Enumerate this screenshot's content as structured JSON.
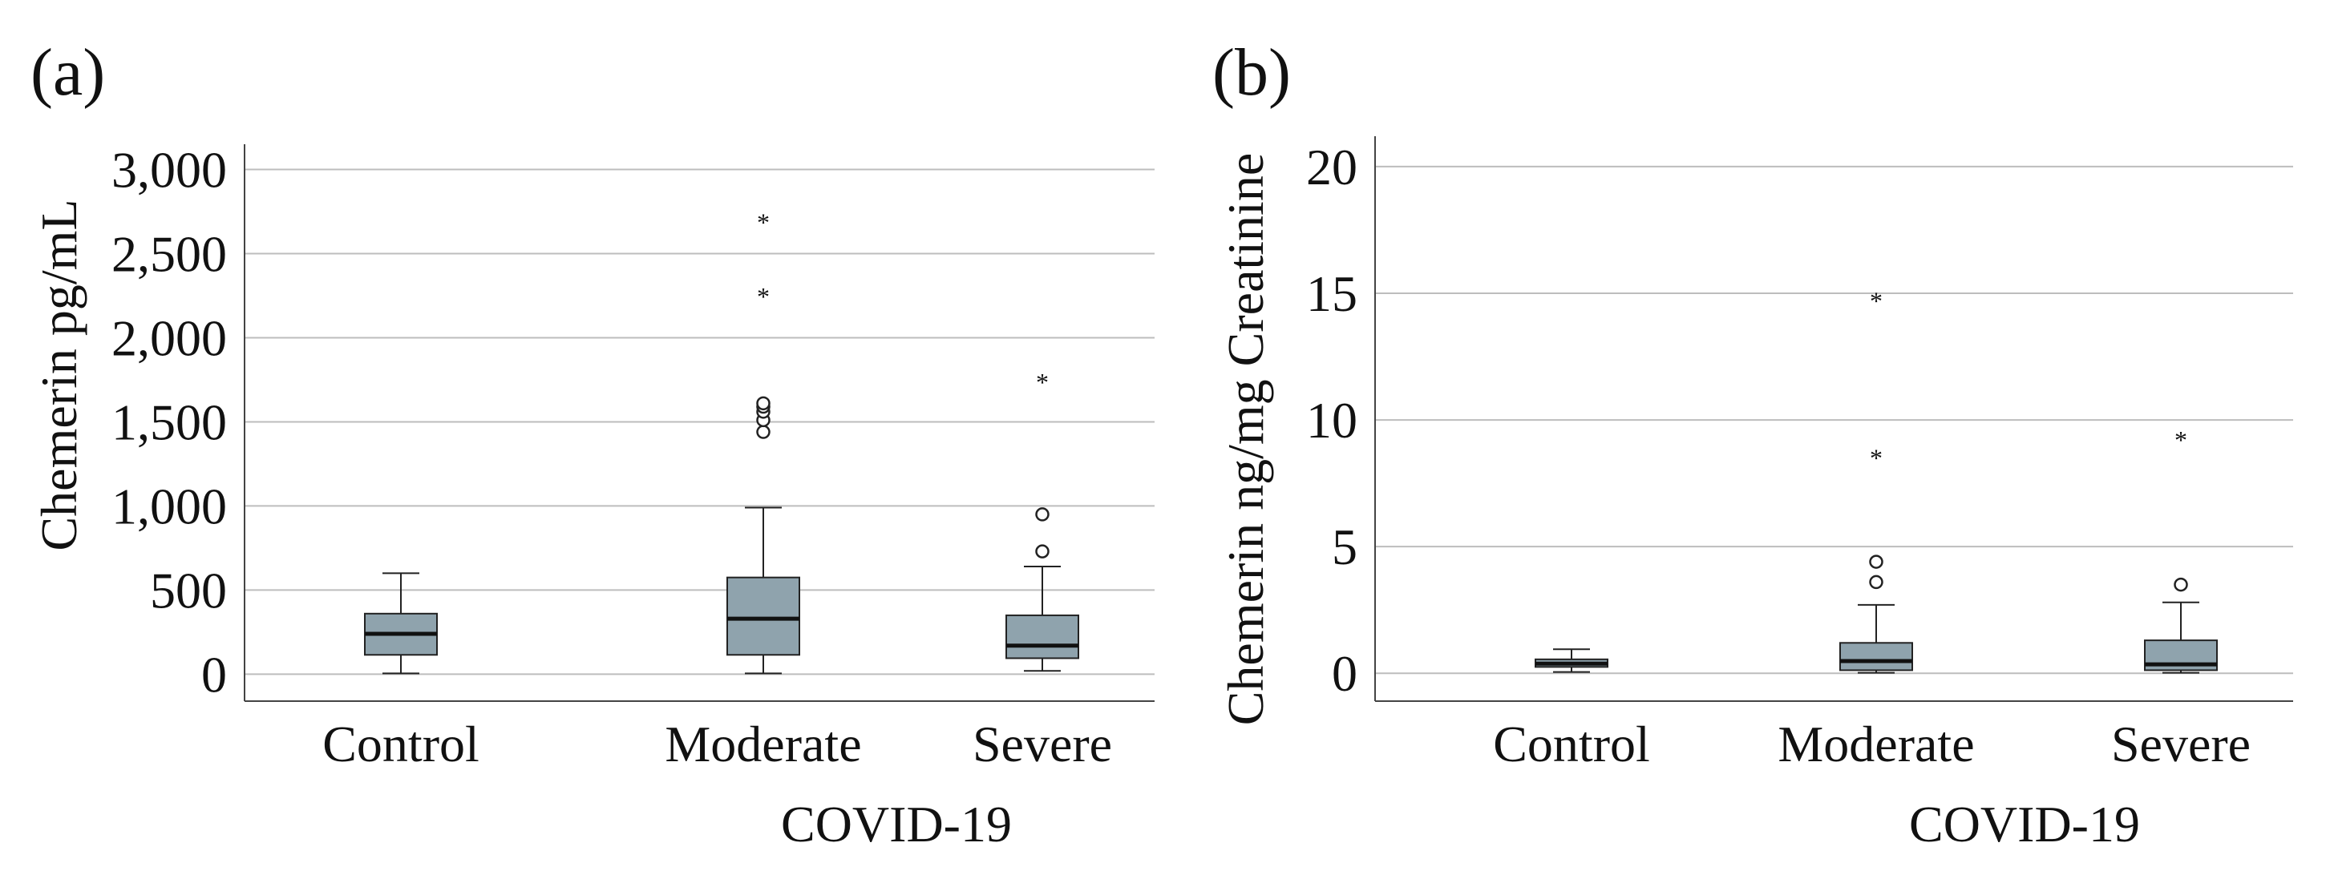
{
  "colors": {
    "box_fill": "#8fa3ad",
    "box_edge": "#222222",
    "grid": "#bdbdbd",
    "axis": "#444444",
    "background": "#ffffff"
  },
  "chart_data": [
    {
      "type": "boxplot",
      "panel_label": "(a)",
      "title": "",
      "ylabel": "Chemerin pg/mL",
      "xlabel": "COVID-19",
      "ylim": [
        -160,
        3150
      ],
      "yticks": [
        0,
        500,
        1000,
        1500,
        2000,
        2500,
        3000
      ],
      "ytick_labels": [
        "0",
        "500",
        "1,000",
        "1,500",
        "2,000",
        "2,500",
        "3,000"
      ],
      "grid": true,
      "categories": [
        "Control",
        "Moderate",
        "Severe"
      ],
      "boxes": [
        {
          "category": "Control",
          "min": 5,
          "q1": 115,
          "median": 240,
          "q3": 360,
          "max": 600,
          "outliers": [],
          "extremes": []
        },
        {
          "category": "Moderate",
          "min": 5,
          "q1": 115,
          "median": 330,
          "q3": 575,
          "max": 990,
          "outliers": [
            1440,
            1510,
            1560,
            1590,
            1610
          ],
          "extremes": [
            2260,
            2700
          ]
        },
        {
          "category": "Severe",
          "min": 20,
          "q1": 95,
          "median": 170,
          "q3": 350,
          "max": 640,
          "outliers": [
            730,
            950
          ],
          "extremes": [
            1750
          ]
        }
      ]
    },
    {
      "type": "boxplot",
      "panel_label": "(b)",
      "title": "",
      "ylabel": "Chemerin ng/mg Creatinine",
      "xlabel": "COVID-19",
      "ylim": [
        -1.1,
        21.2
      ],
      "yticks": [
        0,
        5,
        10,
        15,
        20
      ],
      "ytick_labels": [
        "0",
        "5",
        "10",
        "15",
        "20"
      ],
      "grid": true,
      "categories": [
        "Control",
        "Moderate",
        "Severe"
      ],
      "boxes": [
        {
          "category": "Control",
          "min": 0.05,
          "q1": 0.25,
          "median": 0.38,
          "q3": 0.55,
          "max": 0.95,
          "outliers": [],
          "extremes": []
        },
        {
          "category": "Moderate",
          "min": 0.02,
          "q1": 0.12,
          "median": 0.48,
          "q3": 1.2,
          "max": 2.7,
          "outliers": [
            3.6,
            4.4
          ],
          "extremes": [
            8.6,
            14.8
          ]
        },
        {
          "category": "Severe",
          "min": 0.02,
          "q1": 0.12,
          "median": 0.35,
          "q3": 1.3,
          "max": 2.8,
          "outliers": [
            3.5
          ],
          "extremes": [
            9.3
          ]
        }
      ]
    }
  ]
}
